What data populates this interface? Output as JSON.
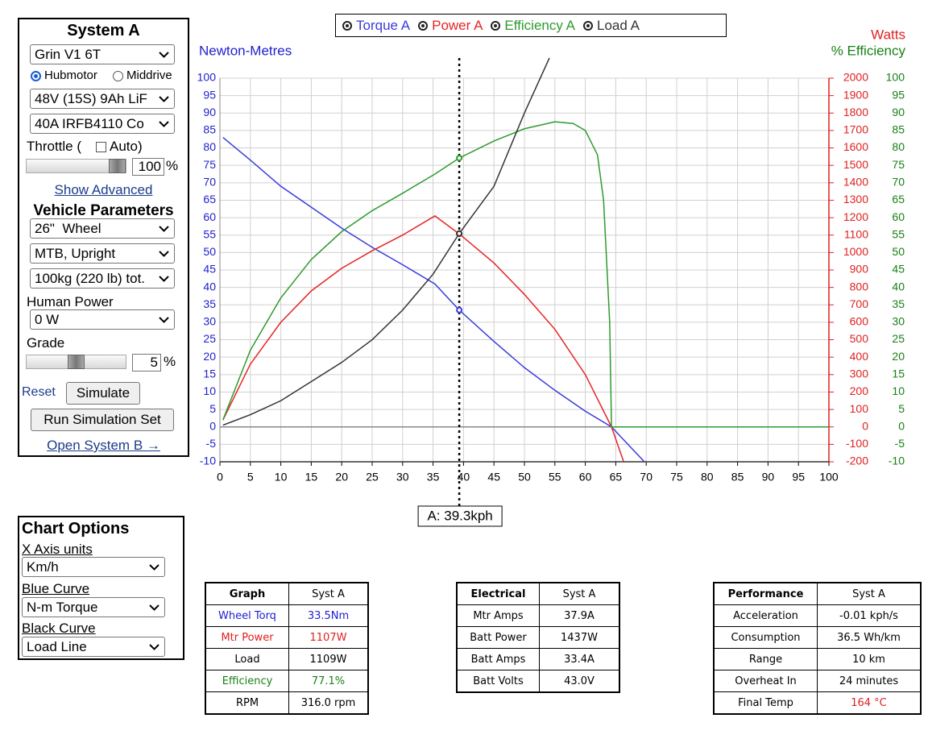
{
  "system_panel": {
    "title": "System A",
    "motor": "Grin V1 6T",
    "motor_types": [
      "Hubmotor",
      "Middrive"
    ],
    "battery": "48V (15S) 9Ah LiF",
    "controller": "40A IRFB4110 Co",
    "throttle_label": "Throttle (",
    "auto_label": "Auto)",
    "throttle_value": "100",
    "percent": "%",
    "show_advanced": "Show Advanced",
    "vehicle_title": "Vehicle Parameters",
    "wheel": "26\"  Wheel",
    "bike": "MTB, Upright",
    "weight": "100kg (220 lb) tot.",
    "human_power_label": "Human Power",
    "human_power": "0 W",
    "grade_label": "Grade",
    "grade_value": "5",
    "reset": "Reset",
    "simulate": "Simulate",
    "run_set": "Run Simulation Set",
    "open_b": "Open System B →"
  },
  "chart_options": {
    "title": "Chart Options",
    "x_label": "X Axis units",
    "x_value": "Km/h",
    "blue_label": "Blue Curve",
    "blue_value": "N-m Torque",
    "black_label": "Black Curve",
    "black_value": "Load Line"
  },
  "chart_data": {
    "type": "line",
    "y_label": "Newton-Metres",
    "y2_label": "Watts",
    "y3_label": "% Efficiency",
    "grid": true,
    "xlim": [
      0,
      100
    ],
    "xticks": [
      0,
      5,
      10,
      15,
      20,
      25,
      30,
      35,
      40,
      45,
      50,
      55,
      60,
      65,
      70,
      75,
      80,
      85,
      90,
      95,
      100
    ],
    "ylim": [
      -10,
      100
    ],
    "yticks": [
      -10,
      -5,
      0,
      5,
      10,
      15,
      20,
      25,
      30,
      35,
      40,
      45,
      50,
      55,
      60,
      65,
      70,
      75,
      80,
      85,
      90,
      95,
      100
    ],
    "y2lim": [
      -200,
      2000
    ],
    "y2ticks": [
      -200,
      -100,
      0,
      100,
      200,
      300,
      400,
      500,
      600,
      700,
      800,
      900,
      1000,
      1100,
      1200,
      1300,
      1400,
      1500,
      1600,
      1700,
      1800,
      1900,
      2000
    ],
    "y3lim": [
      -10,
      100
    ],
    "y3ticks": [
      -10,
      -5,
      0,
      5,
      10,
      15,
      20,
      25,
      30,
      35,
      40,
      45,
      50,
      55,
      60,
      65,
      70,
      75,
      80,
      85,
      90,
      95,
      100
    ],
    "cursor": {
      "x": 39.3,
      "label": "A: 39.3kph"
    },
    "series": [
      {
        "name": "Torque A",
        "color": "#3a3ae0",
        "axis": "y",
        "x": [
          0.5,
          5,
          10,
          15,
          20,
          25,
          30,
          35.3,
          39.3,
          45,
          50,
          55,
          60,
          64.3,
          69.7
        ],
        "values": [
          83,
          76.5,
          69,
          63,
          57,
          51.5,
          46.5,
          41,
          33.5,
          24.5,
          17,
          10.5,
          4.5,
          0,
          -10
        ]
      },
      {
        "name": "Power A",
        "color": "#e52525",
        "axis": "y2",
        "x": [
          0.5,
          5,
          10,
          15,
          20,
          25,
          30,
          35.3,
          39.3,
          45,
          50,
          55,
          60,
          64.3,
          66.3
        ],
        "values": [
          40,
          360,
          600,
          780,
          910,
          1010,
          1100,
          1210,
          1107,
          940,
          760,
          560,
          300,
          0,
          -200
        ]
      },
      {
        "name": "Efficiency A",
        "color": "#2e9a2e",
        "axis": "y3",
        "x": [
          0.5,
          5,
          10,
          15,
          20,
          25,
          30,
          35.3,
          39.3,
          45,
          50,
          55,
          58,
          60,
          62,
          63,
          64,
          64.3,
          100
        ],
        "values": [
          2,
          22,
          37,
          48,
          56,
          62,
          67,
          72.5,
          77.1,
          82,
          85.5,
          87.5,
          87,
          85,
          78,
          65,
          30,
          0,
          0
        ]
      },
      {
        "name": "Load A",
        "color": "#333333",
        "axis": "y2",
        "x": [
          0.5,
          5,
          10,
          15,
          20,
          25,
          30,
          35,
          39.3,
          45,
          50,
          54.1
        ],
        "values": [
          10,
          70,
          150,
          260,
          370,
          500,
          670,
          876,
          1109,
          1380,
          1800,
          2116
        ]
      }
    ]
  },
  "tables": [
    {
      "header": [
        "Graph",
        "Syst A"
      ],
      "rows": [
        [
          "Wheel Torq",
          "33.5Nm"
        ],
        [
          "Mtr Power",
          "1107W"
        ],
        [
          "Load",
          "1109W"
        ],
        [
          "Efficiency",
          "77.1%"
        ],
        [
          "RPM",
          "316.0 rpm"
        ]
      ],
      "label_colors": [
        "#2020d0",
        "#e02020",
        "#000000",
        "#178017",
        "#000000"
      ],
      "value_colors": [
        "#2020d0",
        "#e02020",
        "#000000",
        "#178017",
        "#000000"
      ]
    },
    {
      "header": [
        "Electrical",
        "Syst A"
      ],
      "rows": [
        [
          "Mtr Amps",
          "37.9A"
        ],
        [
          "Batt Power",
          "1437W"
        ],
        [
          "Batt Amps",
          "33.4A"
        ],
        [
          "Batt Volts",
          "43.0V"
        ]
      ],
      "label_colors": [
        "#000000",
        "#000000",
        "#000000",
        "#000000"
      ],
      "value_colors": [
        "#000000",
        "#000000",
        "#000000",
        "#000000"
      ]
    },
    {
      "header": [
        "Performance",
        "Syst A"
      ],
      "rows": [
        [
          "Acceleration",
          "-0.01 kph/s"
        ],
        [
          "Consumption",
          "36.5 Wh/km"
        ],
        [
          "Range",
          "10 km"
        ],
        [
          "Overheat In",
          "24 minutes"
        ],
        [
          "Final Temp",
          "164 °C"
        ]
      ],
      "label_colors": [
        "#000000",
        "#000000",
        "#000000",
        "#000000",
        "#000000"
      ],
      "value_colors": [
        "#000000",
        "#000000",
        "#000000",
        "#000000",
        "#e02020"
      ]
    }
  ]
}
